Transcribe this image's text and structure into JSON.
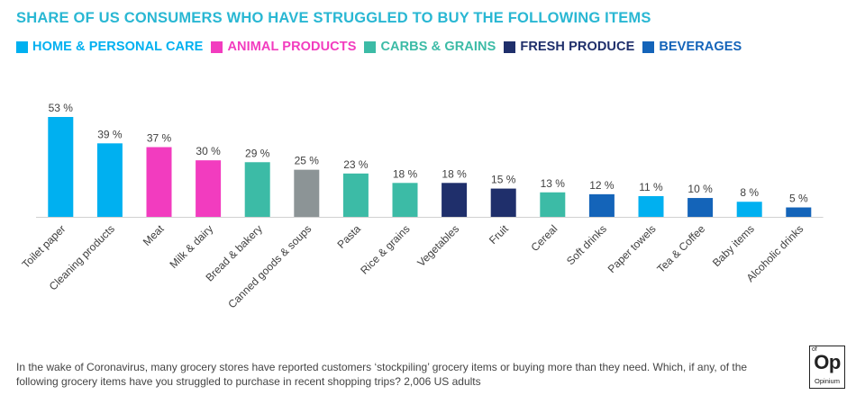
{
  "title": "SHARE OF US CONSUMERS WHO HAVE STRUGGLED TO BUY THE FOLLOWING ITEMS",
  "legend": [
    {
      "label": "HOME & PERSONAL CARE",
      "color": "#00b0f0"
    },
    {
      "label": "ANIMAL PRODUCTS",
      "color": "#f23cbf"
    },
    {
      "label": "CARBS & GRAINS",
      "color": "#3cbba6"
    },
    {
      "label": "FRESH PRODUCE",
      "color": "#1f2f6b"
    },
    {
      "label": "BEVERAGES",
      "color": "#1464b9"
    }
  ],
  "chart_data": {
    "type": "bar",
    "title": "SHARE OF US CONSUMERS WHO HAVE STRUGGLED TO BUY THE FOLLOWING ITEMS",
    "xlabel": "",
    "ylabel": "",
    "ylim": [
      0,
      53
    ],
    "grid": false,
    "legend_position": "top-left",
    "value_suffix": " %",
    "categories": [
      "Toilet paper",
      "Cleaning products",
      "Meat",
      "Milk & dairy",
      "Bread & bakery",
      "Canned goods & soups",
      "Pasta",
      "Rice & grains",
      "Vegetables",
      "Fruit",
      "Cereal",
      "Soft drinks",
      "Paper towels",
      "Tea & Coffee",
      "Baby items",
      "Alcoholic drinks"
    ],
    "values": [
      53,
      39,
      37,
      30,
      29,
      25,
      23,
      18,
      18,
      15,
      13,
      12,
      11,
      10,
      8,
      5
    ],
    "colors": [
      "#00b0f0",
      "#00b0f0",
      "#f23cbf",
      "#f23cbf",
      "#3cbba6",
      "#8c9496",
      "#3cbba6",
      "#3cbba6",
      "#1f2f6b",
      "#1f2f6b",
      "#3cbba6",
      "#1464b9",
      "#00b0f0",
      "#1464b9",
      "#00b0f0",
      "#1464b9"
    ]
  },
  "footnote": "In the wake of Coronavirus, many grocery stores have reported customers ‘stockpiling’ grocery items or buying more than they need. Which, if any, of the following grocery items have you struggled to purchase in recent shopping trips? 2,006 US adults",
  "logo": {
    "of": "of",
    "mark": "Op",
    "name": "Opinium"
  }
}
